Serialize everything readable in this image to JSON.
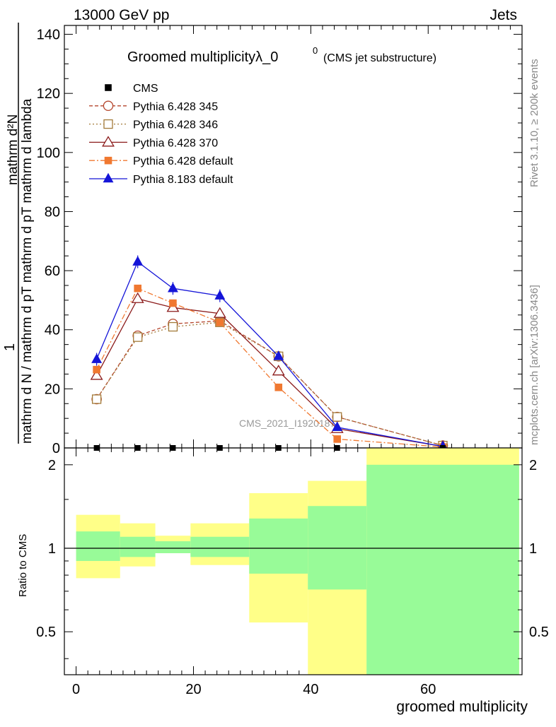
{
  "header": {
    "left": "13000 GeV pp",
    "right": "Jets"
  },
  "side": {
    "rivet": "Rivet 3.1.10, ≥ 200k events",
    "mcplots": "mcplots.cern.ch [arXiv:1306.3436]"
  },
  "chart_data": {
    "type": "line",
    "title_main": "Groomed multiplicityλ_0",
    "title_sup": "0",
    "title_sub": "(CMS jet substructure)",
    "watermark": "CMS_2021_I1920187",
    "xlabel": "groomed multiplicity",
    "ylabel_top": {
      "one": "1",
      "numerator": "mathrm d²N",
      "denominator": "mathrm d N / mathrm d pT mathrm d pT mathrm d lambda"
    },
    "ylabel_bottom": "Ratio to CMS",
    "xlim": [
      -2,
      76
    ],
    "ylim": [
      0,
      143
    ],
    "ratio_ylim": [
      0.35,
      2.3
    ],
    "x_ticks": [
      "0",
      "20",
      "40",
      "60"
    ],
    "y_ticks": [
      "0",
      "20",
      "40",
      "60",
      "80",
      "100",
      "120",
      "140"
    ],
    "ratio_ticks": [
      "0.5",
      "1",
      "2"
    ],
    "x": [
      3.5,
      10.5,
      16.5,
      24.5,
      34.5,
      44.5,
      62.5
    ],
    "data_ref": {
      "name": "CMS",
      "values": [
        0,
        0,
        0,
        0,
        0,
        0,
        0
      ]
    },
    "series": [
      {
        "name": "Pythia 6.428 345",
        "color": "#b5462d",
        "marker": "circle-open",
        "dash": "5,3",
        "values": [
          16.5,
          38,
          42,
          43,
          31,
          10.5,
          0.8
        ]
      },
      {
        "name": "Pythia 6.428 346",
        "color": "#a37b3a",
        "marker": "square-open",
        "dash": "2,3",
        "values": [
          16.5,
          37.5,
          41,
          42.5,
          31,
          10.5,
          0.8
        ]
      },
      {
        "name": "Pythia 6.428 370",
        "color": "#8b1a1a",
        "marker": "triangle-open",
        "dash": "",
        "values": [
          24.5,
          50.5,
          47.5,
          45.5,
          26,
          6.5,
          0.5
        ]
      },
      {
        "name": "Pythia 6.428 default",
        "color": "#f07830",
        "marker": "square-filled",
        "dash": "8,3,2,3",
        "values": [
          26.5,
          54,
          49,
          42.5,
          20.5,
          3,
          0.3
        ]
      },
      {
        "name": "Pythia 8.183 default",
        "color": "#1515d8",
        "marker": "triangle-filled",
        "dash": "",
        "values": [
          30,
          63,
          54,
          51.5,
          31,
          7,
          0.5
        ]
      }
    ],
    "ratio_bands": [
      {
        "x_from": 0,
        "x_to": 7.5,
        "green": [
          0.9,
          1.15
        ],
        "yellow": [
          0.78,
          1.32
        ]
      },
      {
        "x_from": 7.5,
        "x_to": 13.5,
        "green": [
          0.93,
          1.1
        ],
        "yellow": [
          0.86,
          1.23
        ]
      },
      {
        "x_from": 13.5,
        "x_to": 19.5,
        "green": [
          0.96,
          1.06
        ],
        "yellow": [
          0.96,
          1.11
        ]
      },
      {
        "x_from": 19.5,
        "x_to": 29.5,
        "green": [
          0.93,
          1.1
        ],
        "yellow": [
          0.87,
          1.23
        ]
      },
      {
        "x_from": 29.5,
        "x_to": 39.5,
        "green": [
          0.81,
          1.28
        ],
        "yellow": [
          0.54,
          1.58
        ]
      },
      {
        "x_from": 39.5,
        "x_to": 49.5,
        "green": [
          0.71,
          1.42
        ],
        "yellow": [
          0.35,
          1.75
        ]
      },
      {
        "x_from": 49.5,
        "x_to": 75.5,
        "green": [
          0.35,
          2.0
        ],
        "yellow": [
          0.35,
          2.3
        ]
      }
    ]
  }
}
